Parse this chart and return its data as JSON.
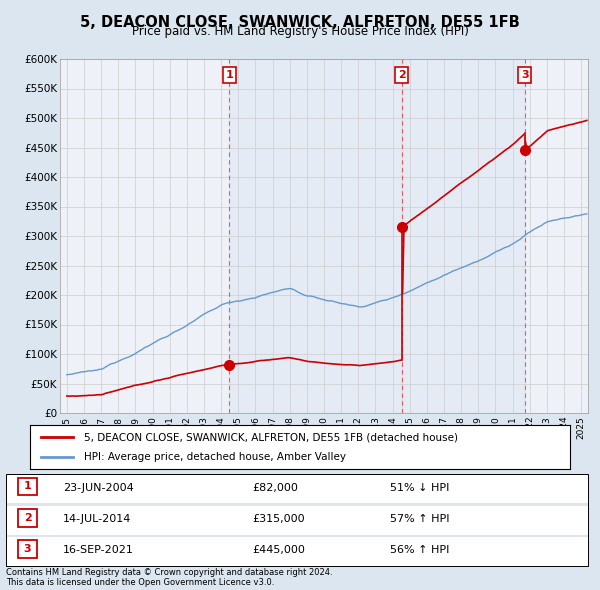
{
  "title": "5, DEACON CLOSE, SWANWICK, ALFRETON, DE55 1FB",
  "subtitle": "Price paid vs. HM Land Registry's House Price Index (HPI)",
  "legend_label_red": "5, DEACON CLOSE, SWANWICK, ALFRETON, DE55 1FB (detached house)",
  "legend_label_blue": "HPI: Average price, detached house, Amber Valley",
  "footer": "Contains HM Land Registry data © Crown copyright and database right 2024.\nThis data is licensed under the Open Government Licence v3.0.",
  "sales": [
    {
      "num": 1,
      "date": "23-JUN-2004",
      "price": 82000,
      "pct": "51%",
      "dir": "↓",
      "year": 2004.47
    },
    {
      "num": 2,
      "date": "14-JUL-2014",
      "price": 315000,
      "pct": "57%",
      "dir": "↑",
      "year": 2014.54
    },
    {
      "num": 3,
      "date": "16-SEP-2021",
      "price": 445000,
      "pct": "56%",
      "dir": "↑",
      "year": 2021.71
    }
  ],
  "vline_color": "#e06060",
  "ylim": [
    0,
    600000
  ],
  "yticks": [
    0,
    50000,
    100000,
    150000,
    200000,
    250000,
    300000,
    350000,
    400000,
    450000,
    500000,
    550000,
    600000
  ],
  "ytick_labels": [
    "£0",
    "£50K",
    "£100K",
    "£150K",
    "£200K",
    "£250K",
    "£300K",
    "£350K",
    "£400K",
    "£450K",
    "£500K",
    "£550K",
    "£600K"
  ],
  "hpi_color": "#6699cc",
  "price_color": "#cc0000",
  "plot_bg_color": "#eef2f8",
  "fig_bg_color": "#dce6f0",
  "xlim_start": 1994.6,
  "xlim_end": 2025.4
}
